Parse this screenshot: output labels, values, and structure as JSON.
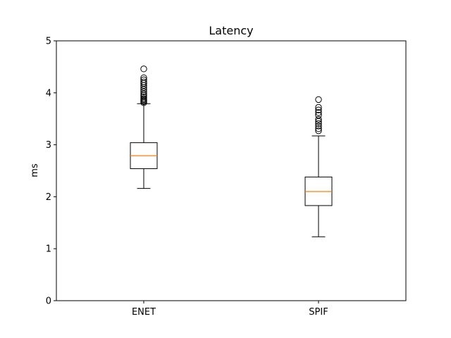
{
  "chart_data": {
    "type": "boxplot",
    "title": "Latency",
    "xlabel": "",
    "ylabel": "ms",
    "ylim": [
      0,
      5
    ],
    "yticks": [
      "0",
      "1",
      "2",
      "3",
      "4",
      "5"
    ],
    "grid": false,
    "categories": [
      "ENET",
      "SPIF"
    ],
    "boxes": [
      {
        "name": "ENET",
        "whisker_low": 2.16,
        "q1": 2.54,
        "median": 2.79,
        "q3": 3.04,
        "whisker_high": 3.79,
        "outliers": [
          3.81,
          3.83,
          3.85,
          3.87,
          3.89,
          3.92,
          3.95,
          3.98,
          4.02,
          4.06,
          4.1,
          4.14,
          4.18,
          4.21,
          4.25,
          4.29,
          4.46
        ]
      },
      {
        "name": "SPIF",
        "whisker_low": 1.23,
        "q1": 1.83,
        "median": 2.1,
        "q3": 2.38,
        "whisker_high": 3.17,
        "outliers": [
          3.27,
          3.31,
          3.36,
          3.41,
          3.45,
          3.49,
          3.57,
          3.62,
          3.67,
          3.72,
          3.87
        ]
      }
    ],
    "colors": {
      "box": "#000000",
      "median": "#ff7f0e",
      "flier": "#000000",
      "axes": "#000000",
      "background": "#ffffff"
    }
  }
}
